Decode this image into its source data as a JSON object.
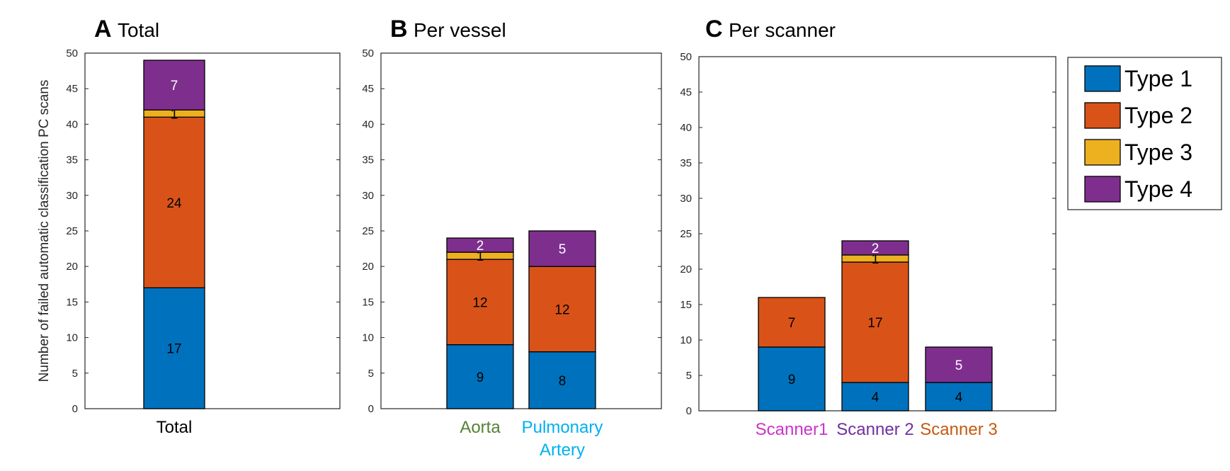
{
  "chart_data": [
    {
      "type": "bar",
      "stacked": true,
      "panel_letter": "A",
      "title": "Total",
      "ylabel": "Number of failed automatic classification PC scans",
      "ylim": [
        0,
        50
      ],
      "yticks": [
        "0",
        "5",
        "10",
        "15",
        "20",
        "25",
        "30",
        "35",
        "40",
        "45",
        "50"
      ],
      "categories": [
        "Total"
      ],
      "category_colors": [
        "#000000"
      ],
      "series": [
        {
          "name": "Type 1",
          "values": [
            17
          ],
          "labels": [
            "17"
          ]
        },
        {
          "name": "Type 2",
          "values": [
            24
          ],
          "labels": [
            "24"
          ]
        },
        {
          "name": "Type 3",
          "values": [
            1
          ],
          "labels": [
            "1"
          ]
        },
        {
          "name": "Type 4",
          "values": [
            7
          ],
          "labels": [
            "7"
          ]
        }
      ]
    },
    {
      "type": "bar",
      "stacked": true,
      "panel_letter": "B",
      "title": "Per vessel",
      "ylim": [
        0,
        50
      ],
      "yticks": [
        "0",
        "5",
        "10",
        "15",
        "20",
        "25",
        "30",
        "35",
        "40",
        "45",
        "50"
      ],
      "categories": [
        "Aorta",
        "Pulmonary Artery"
      ],
      "category_lines": [
        [
          "Aorta"
        ],
        [
          "Pulmonary",
          "Artery"
        ]
      ],
      "category_colors": [
        "#548235",
        "#00B0F0"
      ],
      "series": [
        {
          "name": "Type 1",
          "values": [
            9,
            8
          ],
          "labels": [
            "9",
            "8"
          ]
        },
        {
          "name": "Type 2",
          "values": [
            12,
            12
          ],
          "labels": [
            "12",
            "12"
          ]
        },
        {
          "name": "Type 3",
          "values": [
            1,
            0
          ],
          "labels": [
            "1",
            ""
          ]
        },
        {
          "name": "Type 4",
          "values": [
            2,
            5
          ],
          "labels": [
            "2",
            "5"
          ]
        }
      ]
    },
    {
      "type": "bar",
      "stacked": true,
      "panel_letter": "C",
      "title": "Per scanner",
      "ylim": [
        0,
        50
      ],
      "yticks": [
        "0",
        "5",
        "10",
        "15",
        "20",
        "25",
        "30",
        "35",
        "40",
        "45",
        "50"
      ],
      "categories": [
        "Scanner1",
        "Scanner 2",
        "Scanner 3"
      ],
      "category_colors": [
        "#CC33CC",
        "#7030A0",
        "#C55A11"
      ],
      "series": [
        {
          "name": "Type 1",
          "values": [
            9,
            4,
            4
          ],
          "labels": [
            "9",
            "4",
            "4"
          ]
        },
        {
          "name": "Type 2",
          "values": [
            7,
            17,
            0
          ],
          "labels": [
            "7",
            "17",
            ""
          ]
        },
        {
          "name": "Type 3",
          "values": [
            0,
            1,
            0
          ],
          "labels": [
            "",
            "1",
            ""
          ]
        },
        {
          "name": "Type 4",
          "values": [
            0,
            2,
            5
          ],
          "labels": [
            "",
            "2",
            "5"
          ]
        }
      ]
    }
  ],
  "legend": {
    "position": "right",
    "entries": [
      {
        "name": "Type 1",
        "color": "#0072BD"
      },
      {
        "name": "Type 2",
        "color": "#D95319"
      },
      {
        "name": "Type 3",
        "color": "#EDB120"
      },
      {
        "name": "Type 4",
        "color": "#7E2F8E"
      }
    ]
  },
  "segment_label_colors": [
    "#000000",
    "#000000",
    "#000000",
    "#ffffff"
  ]
}
